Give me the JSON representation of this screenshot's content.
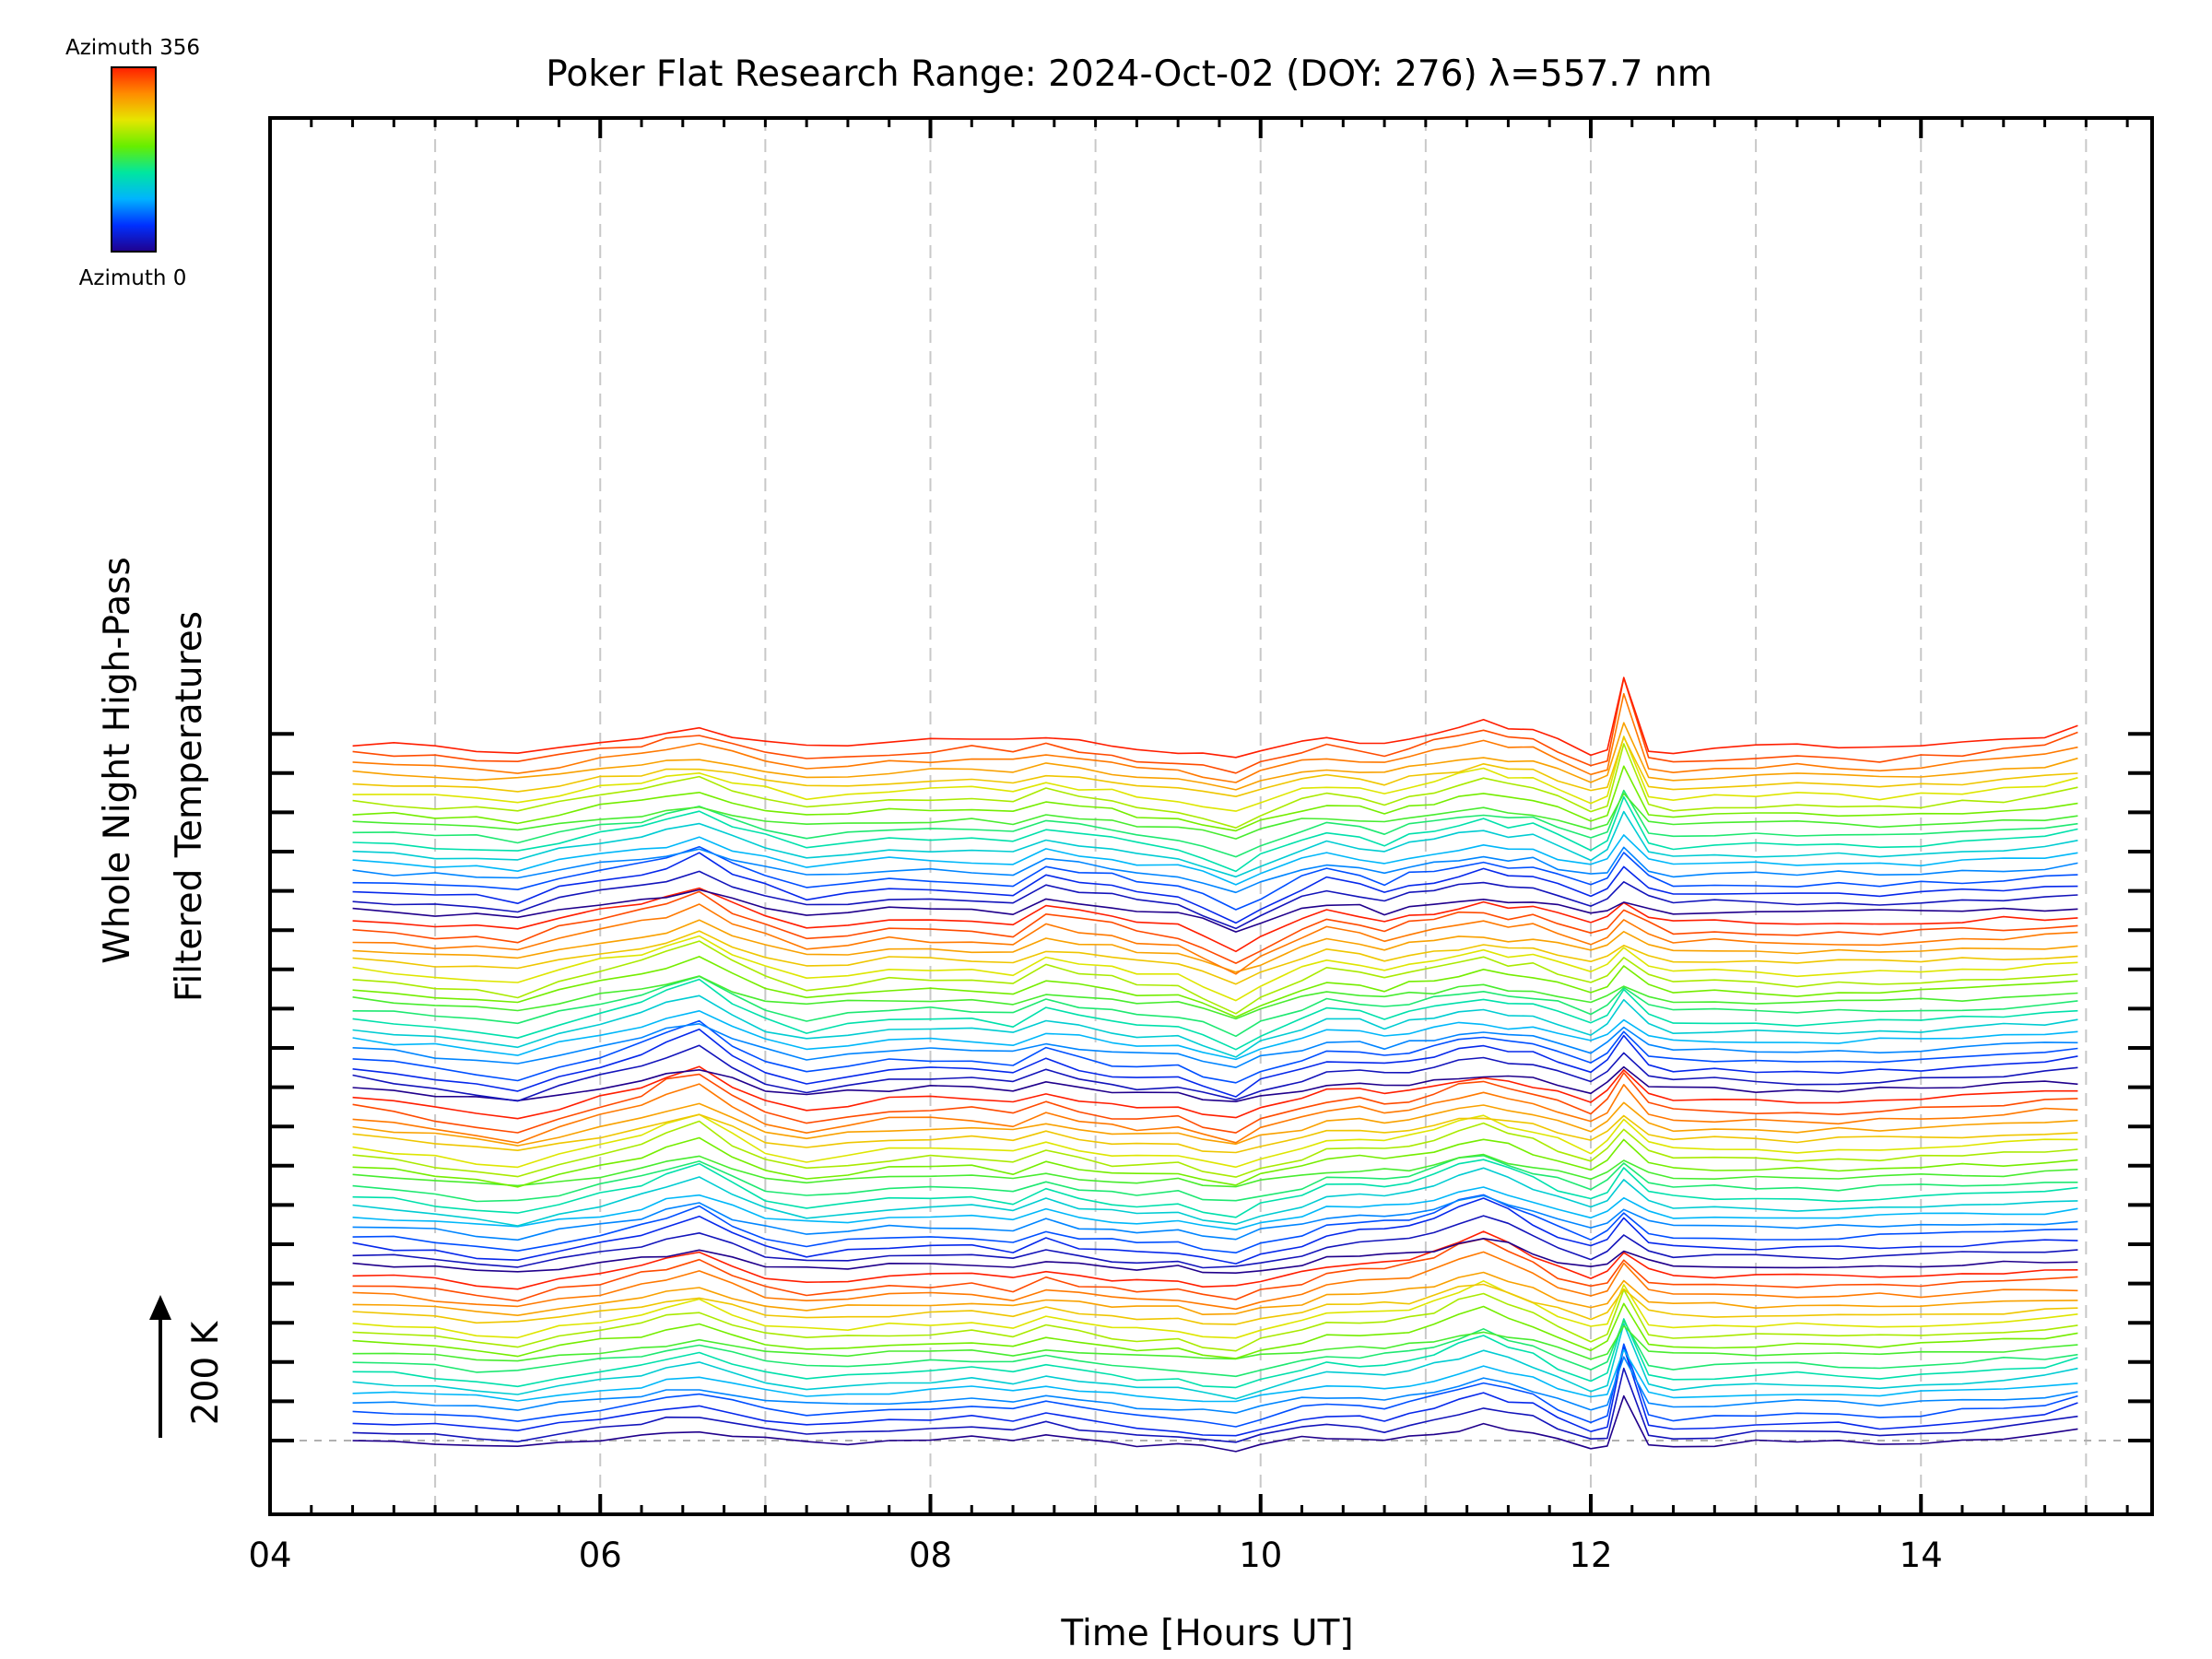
{
  "chart_data": {
    "type": "line",
    "title": "Poker Flat Research Range: 2024-Oct-02 (DOY: 276) λ=557.7 nm",
    "xlabel": "Time [Hours UT]",
    "ylabel_line1": "Whole Night High-Pass",
    "ylabel_line2": "Filtered Temperatures",
    "scale_label": "200 K",
    "colorbar": {
      "max_label": "Azimuth 356",
      "min_label": "Azimuth 0",
      "colormap": "rainbow",
      "colors": [
        "#20008c",
        "#0030ff",
        "#00b4ff",
        "#00e6a0",
        "#66ee00",
        "#e6e600",
        "#ff8c00",
        "#ff1e00"
      ]
    },
    "xlim": [
      4.0,
      15.4
    ],
    "x_ticks": [
      "04",
      "06",
      "08",
      "10",
      "12",
      "14"
    ],
    "x_tick_values": [
      4,
      6,
      8,
      10,
      12,
      14
    ],
    "x_grid_values": [
      5,
      6,
      7,
      8,
      9,
      10,
      11,
      12,
      13,
      14,
      15
    ],
    "grid": true,
    "grid_style": "dashed-gray",
    "y_offset_step_K": 15,
    "scale_bar_K": 200,
    "n_series": 72,
    "x": [
      4.5,
      4.75,
      5.0,
      5.25,
      5.5,
      5.75,
      6.0,
      6.25,
      6.4,
      6.6,
      6.8,
      7.0,
      7.25,
      7.5,
      7.75,
      8.0,
      8.25,
      8.5,
      8.7,
      8.9,
      9.1,
      9.25,
      9.5,
      9.65,
      9.85,
      10.0,
      10.25,
      10.4,
      10.6,
      10.75,
      10.9,
      11.05,
      11.2,
      11.35,
      11.5,
      11.65,
      11.8,
      12.0,
      12.1,
      12.2,
      12.35,
      12.5,
      12.75,
      13.0,
      13.25,
      13.5,
      13.75,
      14.0,
      14.25,
      14.5,
      14.75,
      14.95
    ],
    "template_profiles": {
      "p1": [
        0,
        -6,
        -10,
        -8,
        -16,
        5,
        20,
        30,
        40,
        60,
        30,
        10,
        -12,
        -5,
        5,
        0,
        -2,
        -8,
        25,
        18,
        12,
        0,
        -10,
        -25,
        -55,
        -30,
        5,
        20,
        10,
        -5,
        12,
        15,
        25,
        30,
        20,
        25,
        10,
        -5,
        5,
        30,
        10,
        -5,
        -2,
        -5,
        -8,
        -5,
        -5,
        -3,
        0,
        2,
        5,
        8
      ],
      "p2": [
        0,
        -10,
        -20,
        -30,
        -40,
        -20,
        0,
        20,
        40,
        55,
        20,
        -10,
        -25,
        -15,
        -5,
        -2,
        -3,
        -12,
        10,
        -5,
        -15,
        -20,
        -15,
        -30,
        -40,
        -20,
        -5,
        10,
        12,
        5,
        10,
        20,
        30,
        35,
        25,
        20,
        10,
        -10,
        10,
        50,
        5,
        -5,
        -5,
        -8,
        -10,
        -8,
        -5,
        -3,
        0,
        5,
        10,
        15
      ],
      "p3": [
        0,
        -5,
        -10,
        -20,
        -25,
        -10,
        0,
        15,
        25,
        40,
        15,
        -5,
        -15,
        -10,
        -5,
        -3,
        -3,
        -10,
        8,
        -3,
        -10,
        -12,
        -10,
        -20,
        -25,
        -12,
        0,
        15,
        20,
        25,
        30,
        40,
        60,
        75,
        55,
        30,
        10,
        -5,
        5,
        35,
        5,
        -3,
        -3,
        -5,
        -5,
        -5,
        -3,
        -2,
        0,
        2,
        3,
        5
      ],
      "p4": [
        0,
        -3,
        -5,
        -10,
        -15,
        -5,
        5,
        10,
        20,
        25,
        15,
        5,
        -5,
        -5,
        0,
        5,
        10,
        5,
        15,
        5,
        0,
        -10,
        -15,
        -20,
        -25,
        -10,
        5,
        10,
        5,
        0,
        10,
        20,
        30,
        40,
        30,
        25,
        5,
        -20,
        -10,
        120,
        -10,
        -15,
        -10,
        -5,
        0,
        -5,
        -10,
        -5,
        0,
        5,
        15,
        30
      ]
    }
  }
}
